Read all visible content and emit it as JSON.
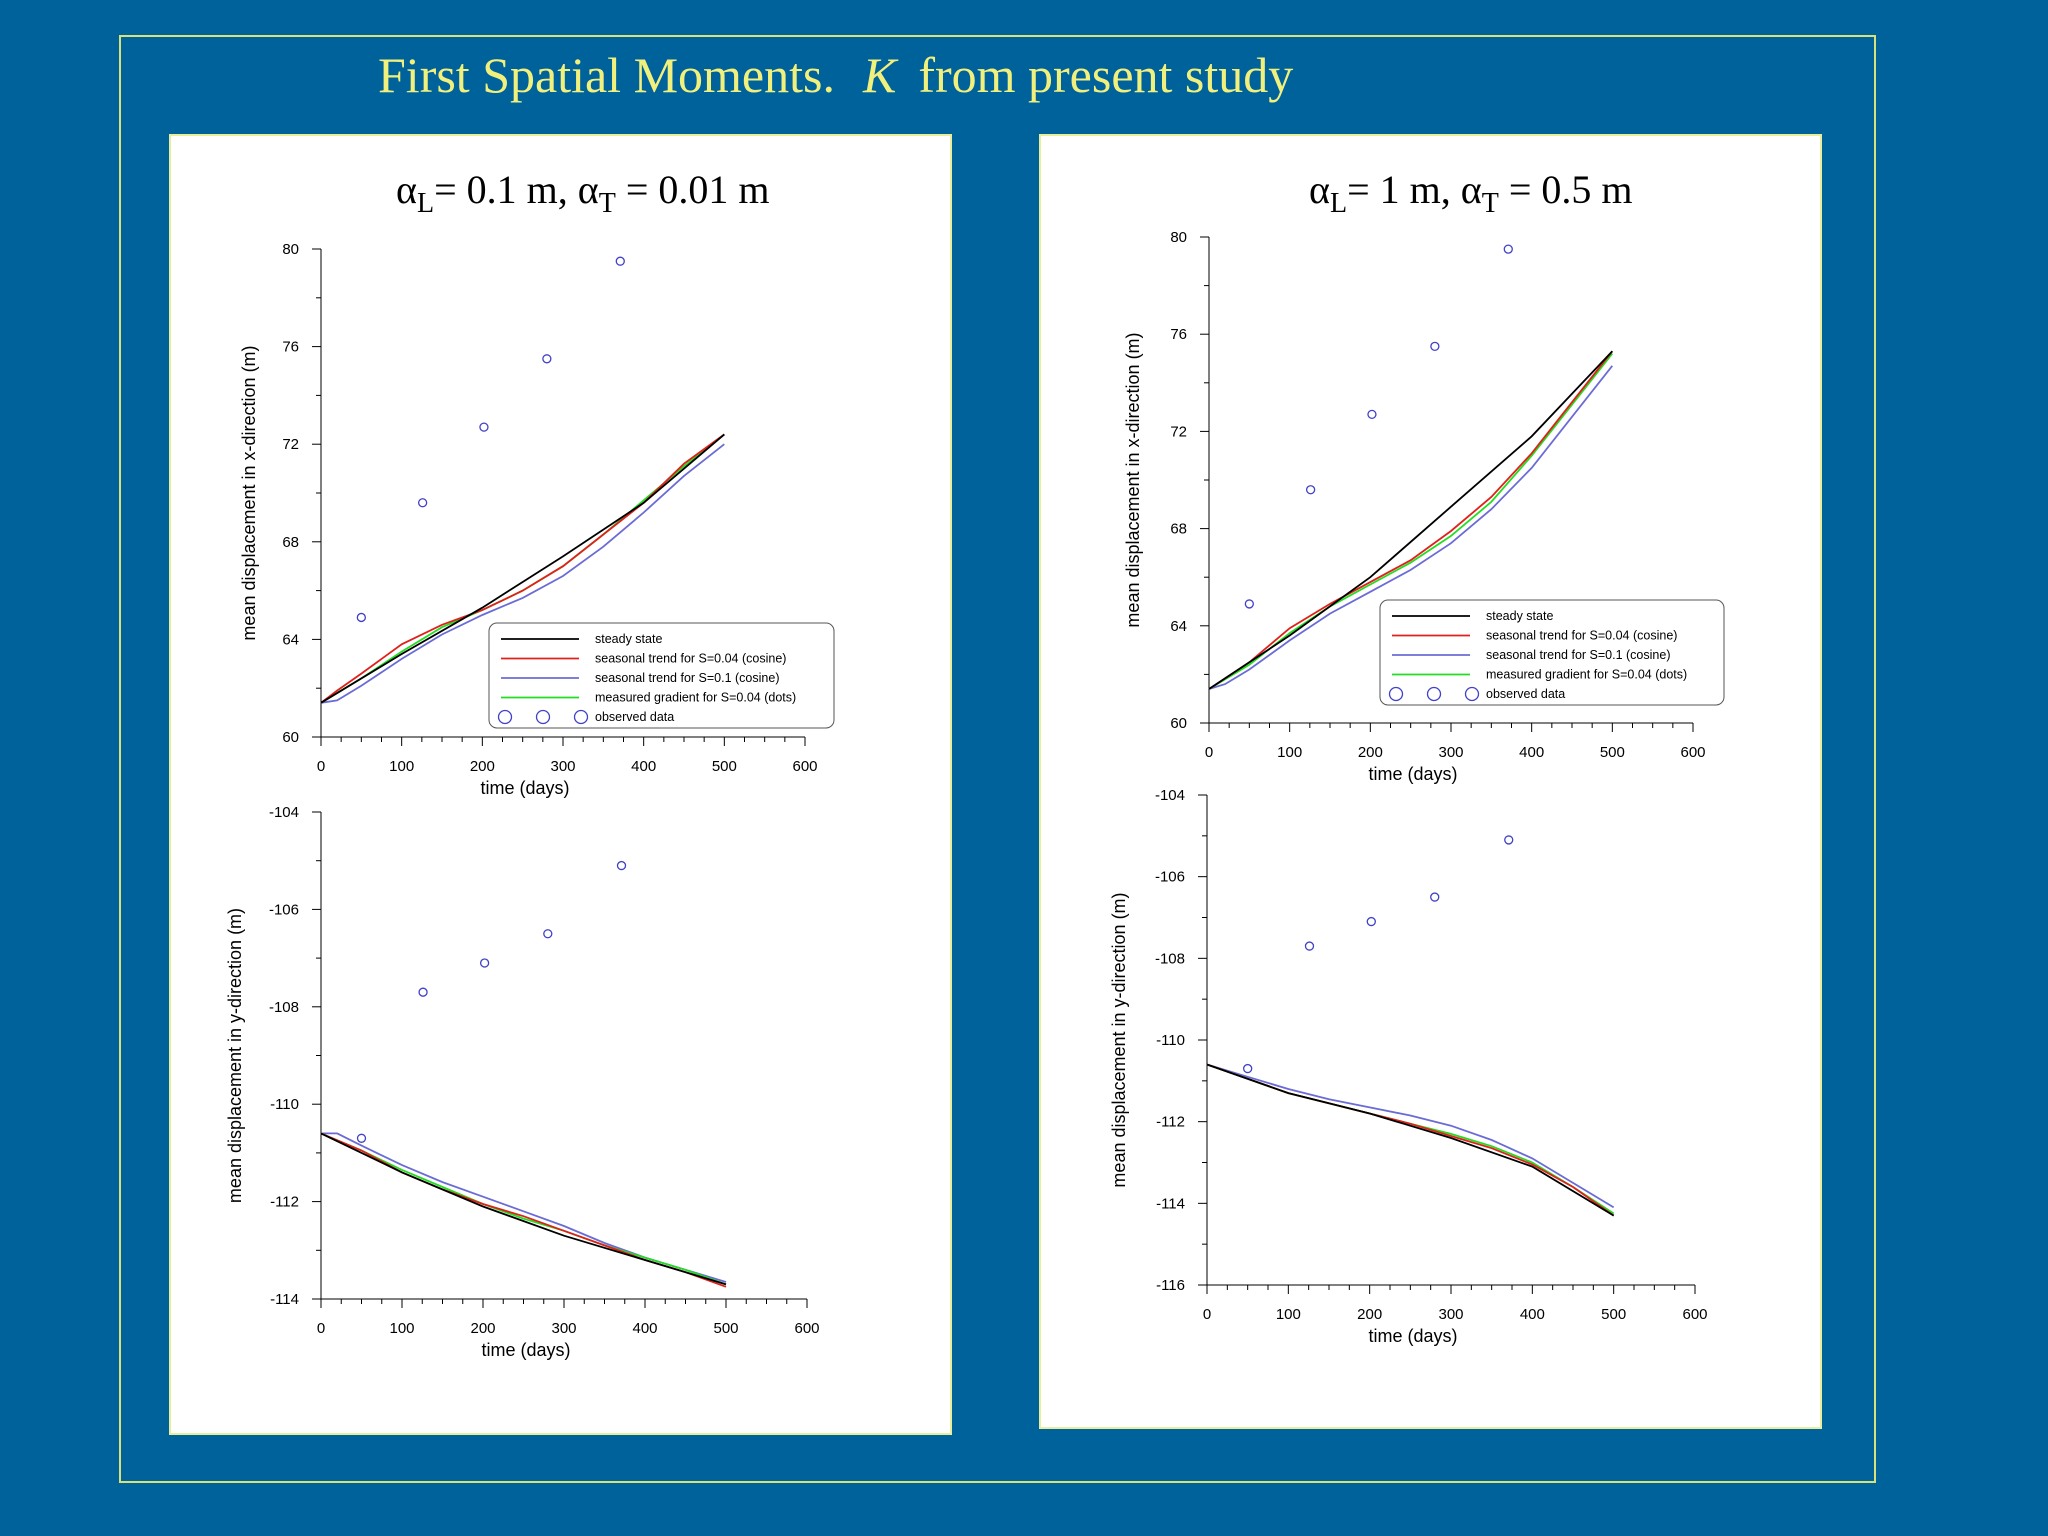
{
  "slide": {
    "title_main": "First Spatial Moments.",
    "title_k": "K",
    "title_rest": "from present study"
  },
  "panels": [
    {
      "title": {
        "alpha1": "α",
        "sub1": "L",
        "mid": "= 0.1 m, ",
        "alpha2": "α",
        "sub2": "T",
        "end": " = 0.01 m"
      }
    },
    {
      "title": {
        "alpha1": "α",
        "sub1": "L",
        "mid": "= 1 m, ",
        "alpha2": "α",
        "sub2": "T",
        "end": " = 0.5 m"
      }
    }
  ],
  "legend": {
    "steady": "steady  state",
    "s004": "seasonal  trend  for S=0.04  (cosine)",
    "s01": "seasonal  trend  for S=0.1   (cosine)",
    "measured": "measured  gradient  for S=0.04  (dots)",
    "observed": "observed  data"
  },
  "colors": {
    "steady": "#000000",
    "s004": "#e0201b",
    "s01": "#6b6bd6",
    "measured": "#22dd22",
    "observed": "#4040c8"
  },
  "chart_data": [
    {
      "type": "line",
      "xlabel": "time  (days)",
      "ylabel": "mean  displacement  in  x-direction  (m)",
      "xlim": [
        0,
        600
      ],
      "ylim": [
        60,
        80
      ],
      "xticks": [
        0,
        100,
        200,
        300,
        400,
        500,
        600
      ],
      "yticks": [
        60,
        64,
        68,
        72,
        76,
        80
      ],
      "legend_position": "bottom-right",
      "series": [
        {
          "name": "steady  state",
          "key": "steady",
          "x": [
            0,
            100,
            200,
            300,
            400,
            500
          ],
          "y": [
            61.4,
            63.4,
            65.3,
            67.4,
            69.6,
            72.4
          ]
        },
        {
          "name": "seasonal  trend  for S=0.04  (cosine)",
          "key": "s004",
          "x": [
            0,
            20,
            50,
            100,
            150,
            200,
            250,
            300,
            350,
            400,
            450,
            500
          ],
          "y": [
            61.4,
            61.9,
            62.6,
            63.8,
            64.6,
            65.2,
            66.0,
            67.0,
            68.3,
            69.6,
            71.2,
            72.4
          ]
        },
        {
          "name": "seasonal  trend  for S=0.1   (cosine)",
          "key": "s01",
          "x": [
            0,
            20,
            50,
            100,
            150,
            200,
            250,
            300,
            350,
            400,
            450,
            500
          ],
          "y": [
            61.4,
            61.5,
            62.1,
            63.2,
            64.2,
            65.0,
            65.7,
            66.6,
            67.8,
            69.2,
            70.7,
            72.0
          ]
        },
        {
          "name": "measured  gradient  for S=0.04  (dots)",
          "key": "measured",
          "x": [
            0,
            20,
            50,
            100,
            150,
            200,
            250,
            300,
            350,
            400,
            450,
            500
          ],
          "y": [
            61.4,
            61.8,
            62.4,
            63.5,
            64.5,
            65.2,
            66.0,
            67.0,
            68.3,
            69.7,
            71.1,
            72.4
          ]
        }
      ],
      "observed": {
        "x": [
          50,
          126,
          202,
          280,
          371
        ],
        "y": [
          64.9,
          69.6,
          72.7,
          75.5,
          79.5
        ]
      }
    },
    {
      "type": "line",
      "xlabel": "time  (days)",
      "ylabel": "mean  displacement  in  y-direction  (m)",
      "xlim": [
        0,
        600
      ],
      "ylim": [
        -114,
        -104
      ],
      "xticks": [
        0,
        100,
        200,
        300,
        400,
        500,
        600
      ],
      "yticks": [
        -114,
        -112,
        -110,
        -108,
        -106,
        -104
      ],
      "series": [
        {
          "name": "steady  state",
          "key": "steady",
          "x": [
            0,
            100,
            200,
            300,
            400,
            500
          ],
          "y": [
            -110.6,
            -111.4,
            -112.1,
            -112.7,
            -113.2,
            -113.7
          ]
        },
        {
          "name": "seasonal  trend  for S=0.04  (cosine)",
          "key": "s004",
          "x": [
            0,
            50,
            100,
            150,
            200,
            250,
            300,
            350,
            400,
            450,
            500
          ],
          "y": [
            -110.6,
            -110.95,
            -111.4,
            -111.75,
            -112.05,
            -112.3,
            -112.6,
            -112.9,
            -113.2,
            -113.45,
            -113.75
          ]
        },
        {
          "name": "seasonal  trend  for S=0.1   (cosine)",
          "key": "s01",
          "x": [
            0,
            20,
            50,
            100,
            150,
            200,
            250,
            300,
            350,
            400,
            450,
            500
          ],
          "y": [
            -110.6,
            -110.6,
            -110.85,
            -111.25,
            -111.6,
            -111.9,
            -112.2,
            -112.5,
            -112.85,
            -113.15,
            -113.4,
            -113.65
          ]
        },
        {
          "name": "measured  gradient  for S=0.04  (dots)",
          "key": "measured",
          "x": [
            0,
            50,
            100,
            150,
            200,
            250,
            300,
            350,
            400,
            450,
            500
          ],
          "y": [
            -110.6,
            -110.95,
            -111.35,
            -111.7,
            -112.05,
            -112.35,
            -112.6,
            -112.9,
            -113.15,
            -113.4,
            -113.7
          ]
        }
      ],
      "observed": {
        "x": [
          50,
          126,
          202,
          280,
          371
        ],
        "y": [
          -110.7,
          -107.7,
          -107.1,
          -106.5,
          -105.1
        ]
      }
    },
    {
      "type": "line",
      "xlabel": "time  (days)",
      "ylabel": "mean  displacement  in  x-direction  (m)",
      "xlim": [
        0,
        600
      ],
      "ylim": [
        60,
        80
      ],
      "xticks": [
        0,
        100,
        200,
        300,
        400,
        500,
        600
      ],
      "yticks": [
        60,
        64,
        68,
        72,
        76,
        80
      ],
      "legend_position": "bottom-right",
      "series": [
        {
          "name": "steady  state",
          "key": "steady",
          "x": [
            0,
            100,
            200,
            300,
            400,
            500
          ],
          "y": [
            61.4,
            63.6,
            66.0,
            68.9,
            71.8,
            75.3
          ]
        },
        {
          "name": "seasonal  trend  for S=0.04  (cosine)",
          "key": "s004",
          "x": [
            0,
            50,
            100,
            150,
            200,
            250,
            300,
            350,
            400,
            450,
            500
          ],
          "y": [
            61.4,
            62.5,
            63.9,
            64.9,
            65.8,
            66.7,
            67.9,
            69.3,
            71.1,
            73.2,
            75.3
          ]
        },
        {
          "name": "seasonal  trend  for S=0.1   (cosine)",
          "key": "s01",
          "x": [
            0,
            20,
            50,
            100,
            150,
            200,
            250,
            300,
            350,
            400,
            450,
            500
          ],
          "y": [
            61.4,
            61.6,
            62.2,
            63.4,
            64.5,
            65.4,
            66.3,
            67.4,
            68.8,
            70.5,
            72.6,
            74.7
          ]
        },
        {
          "name": "measured  gradient  for S=0.04  (dots)",
          "key": "measured",
          "x": [
            0,
            50,
            100,
            150,
            200,
            250,
            300,
            350,
            400,
            450,
            500
          ],
          "y": [
            61.4,
            62.4,
            63.7,
            64.8,
            65.7,
            66.6,
            67.7,
            69.1,
            71.0,
            73.1,
            75.2
          ]
        }
      ],
      "observed": {
        "x": [
          50,
          126,
          202,
          280,
          371
        ],
        "y": [
          64.9,
          69.6,
          72.7,
          75.5,
          79.5
        ]
      }
    },
    {
      "type": "line",
      "xlabel": "time  (days)",
      "ylabel": "mean  displacement  in  y-direction  (m)",
      "xlim": [
        0,
        600
      ],
      "ylim": [
        -116,
        -104
      ],
      "xticks": [
        0,
        100,
        200,
        300,
        400,
        500,
        600
      ],
      "yticks": [
        -116,
        -114,
        -112,
        -110,
        -108,
        -106,
        -104
      ],
      "series": [
        {
          "name": "steady  state",
          "key": "steady",
          "x": [
            0,
            100,
            200,
            300,
            400,
            500
          ],
          "y": [
            -110.6,
            -111.3,
            -111.8,
            -112.4,
            -113.1,
            -114.3
          ]
        },
        {
          "name": "seasonal  trend  for S=0.04  (cosine)",
          "key": "s004",
          "x": [
            0,
            50,
            100,
            150,
            200,
            250,
            300,
            350,
            400,
            450,
            500
          ],
          "y": [
            -110.6,
            -110.95,
            -111.3,
            -111.55,
            -111.8,
            -112.05,
            -112.35,
            -112.65,
            -113.05,
            -113.6,
            -114.3
          ]
        },
        {
          "name": "seasonal  trend  for S=0.1   (cosine)",
          "key": "s01",
          "x": [
            0,
            50,
            100,
            150,
            200,
            250,
            300,
            350,
            400,
            450,
            500
          ],
          "y": [
            -110.6,
            -110.9,
            -111.2,
            -111.45,
            -111.65,
            -111.85,
            -112.1,
            -112.45,
            -112.9,
            -113.5,
            -114.1
          ]
        },
        {
          "name": "measured  gradient  for S=0.04  (dots)",
          "key": "measured",
          "x": [
            0,
            50,
            100,
            150,
            200,
            250,
            300,
            350,
            400,
            450,
            500
          ],
          "y": [
            -110.6,
            -110.95,
            -111.3,
            -111.55,
            -111.8,
            -112.05,
            -112.3,
            -112.6,
            -113.0,
            -113.6,
            -114.25
          ]
        }
      ],
      "observed": {
        "x": [
          50,
          126,
          202,
          280,
          371
        ],
        "y": [
          -110.7,
          -107.7,
          -107.1,
          -106.5,
          -105.1
        ]
      }
    }
  ]
}
